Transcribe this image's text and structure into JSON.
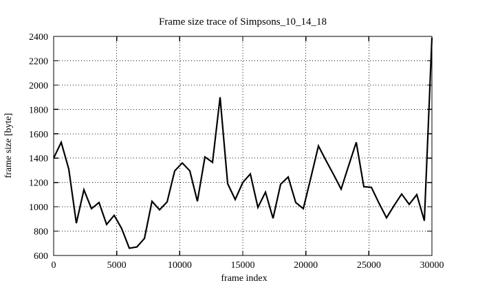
{
  "chart_data": {
    "type": "line",
    "title": "Frame size trace of Simpsons_10_14_18",
    "xlabel": "frame index",
    "ylabel": "frame size [byte]",
    "xlim": [
      0,
      30000
    ],
    "ylim": [
      600,
      2400
    ],
    "xticks": [
      0,
      5000,
      10000,
      15000,
      20000,
      25000,
      30000
    ],
    "yticks": [
      600,
      800,
      1000,
      1200,
      1400,
      1600,
      1800,
      2000,
      2200,
      2400
    ],
    "grid": "dotted",
    "legend_position": "none",
    "line_color": "#000000",
    "grid_color": "#111111",
    "background_color": "#ffffff",
    "x": [
      0,
      600,
      1200,
      1800,
      2400,
      3000,
      3600,
      4200,
      4800,
      5400,
      6000,
      6600,
      7200,
      7800,
      8400,
      9000,
      9600,
      10200,
      10800,
      11400,
      12000,
      12600,
      13200,
      13800,
      14400,
      15000,
      15600,
      16200,
      16800,
      17400,
      18000,
      18600,
      19200,
      19800,
      20400,
      21000,
      21600,
      22200,
      22800,
      23400,
      24000,
      24600,
      25200,
      25800,
      26400,
      27000,
      27600,
      28200,
      28800,
      29400,
      30000
    ],
    "values": [
      1400,
      1530,
      1310,
      865,
      1140,
      985,
      1035,
      855,
      930,
      820,
      660,
      670,
      740,
      1045,
      975,
      1040,
      1295,
      1360,
      1295,
      1045,
      1410,
      1365,
      1900,
      1190,
      1060,
      1200,
      1270,
      995,
      1120,
      905,
      1185,
      1245,
      1035,
      985,
      1240,
      1500,
      1380,
      1265,
      1145,
      1340,
      1530,
      1165,
      1160,
      1030,
      910,
      1010,
      1105,
      1020,
      1100,
      885,
      2390
    ]
  }
}
